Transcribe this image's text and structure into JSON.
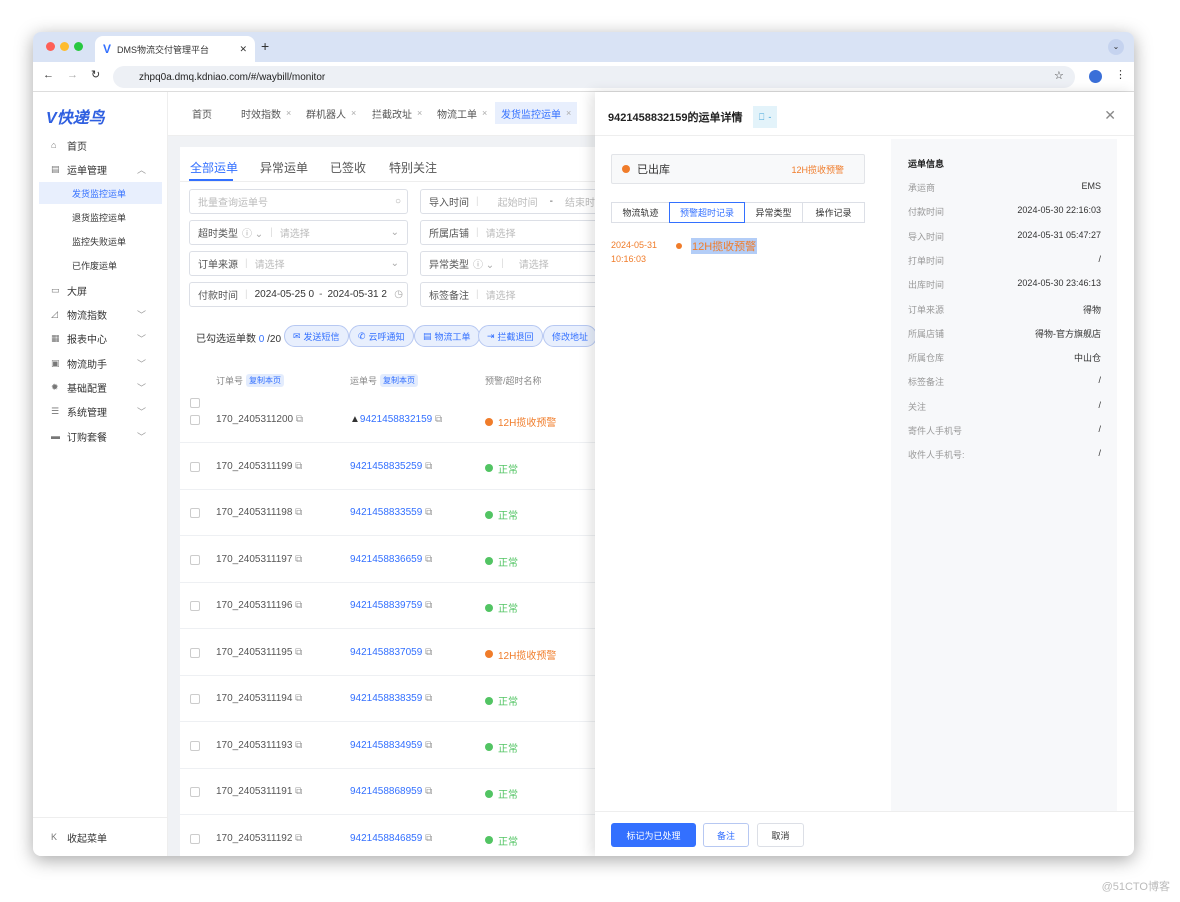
{
  "browser": {
    "tab_title": "DMS物流交付管理平台",
    "url": "zhpq0a.dmq.kdniao.com/#/waybill/monitor"
  },
  "logo": "V快递鸟",
  "sidebar": {
    "items": [
      {
        "label": "首页",
        "icon": "home-icon"
      },
      {
        "label": "运单管理",
        "icon": "document-icon",
        "expanded": true,
        "children": [
          "发货监控运单",
          "退货监控运单",
          "监控失败运单",
          "已作废运单"
        ]
      },
      {
        "label": "大屏",
        "icon": "monitor-icon"
      },
      {
        "label": "物流指数",
        "icon": "chart-icon"
      },
      {
        "label": "报表中心",
        "icon": "grid-icon"
      },
      {
        "label": "物流助手",
        "icon": "wallet-icon"
      },
      {
        "label": "基础配置",
        "icon": "gear-icon"
      },
      {
        "label": "系统管理",
        "icon": "server-icon"
      },
      {
        "label": "订购套餐",
        "icon": "package-icon"
      }
    ],
    "active_child": "发货监控运单",
    "collapse": "收起菜单"
  },
  "page_tabs": [
    "首页",
    "时效指数",
    "群机器人",
    "拦截改址",
    "物流工单",
    "发货监控运单"
  ],
  "main": {
    "tabs": [
      "全部运单",
      "异常运单",
      "已签收",
      "特别关注"
    ],
    "filters": {
      "search_placeholder": "批量查询运单号",
      "import_time": "导入时间",
      "start_ph": "起始时间",
      "end_ph": "结束时",
      "timeout_type": "超时类型",
      "store": "所属店铺",
      "order_source": "订单来源",
      "exception_type": "异常类型",
      "pay_time": "付款时间",
      "pay_start": "2024-05-25 0",
      "pay_end": "2024-05-31 2",
      "tag_note": "标签备注",
      "select_ph": "请选择",
      "dash": "-"
    },
    "selected_label": "已勾选运单数",
    "selected_count": "0",
    "selected_total": "/20",
    "actions": [
      "发送短信",
      "云呼通知",
      "物流工单",
      "拦截退回",
      "修改地址"
    ],
    "columns": {
      "order": "订单号",
      "waybill": "运单号",
      "copy": "复制本页",
      "warning": "预警/超时名称"
    },
    "rows": [
      {
        "order": "170_2405311200",
        "waybill": "9421458832159",
        "status": "12H揽收预警",
        "warn": true,
        "flag": true
      },
      {
        "order": "170_2405311199",
        "waybill": "9421458835259",
        "status": "正常"
      },
      {
        "order": "170_2405311198",
        "waybill": "9421458833559",
        "status": "正常"
      },
      {
        "order": "170_2405311197",
        "waybill": "9421458836659",
        "status": "正常"
      },
      {
        "order": "170_2405311196",
        "waybill": "9421458839759",
        "status": "正常"
      },
      {
        "order": "170_2405311195",
        "waybill": "9421458837059",
        "status": "12H揽收预警",
        "warn": true
      },
      {
        "order": "170_2405311194",
        "waybill": "9421458838359",
        "status": "正常"
      },
      {
        "order": "170_2405311193",
        "waybill": "9421458834959",
        "status": "正常"
      },
      {
        "order": "170_2405311191",
        "waybill": "9421458868959",
        "status": "正常"
      },
      {
        "order": "170_2405311192",
        "waybill": "9421458846859",
        "status": "正常"
      }
    ]
  },
  "drawer": {
    "title": "9421458832159的运单详情",
    "tag": "-",
    "status": "已出库",
    "status_warn": "12H揽收预警",
    "tabs": [
      "物流轨迹",
      "预警超时记录",
      "异常类型",
      "操作记录"
    ],
    "active_tab": "预警超时记录",
    "record": {
      "date": "2024-05-31",
      "time": "10:16:03",
      "name": "12H揽收预警"
    },
    "info_title": "运单信息",
    "info": [
      [
        "承运商",
        "EMS"
      ],
      [
        "付款时间",
        "2024-05-30 22:16:03"
      ],
      [
        "导入时间",
        "2024-05-31 05:47:27"
      ],
      [
        "打单时间",
        "/"
      ],
      [
        "出库时间",
        "2024-05-30 23:46:13"
      ],
      [
        "订单来源",
        "得物"
      ],
      [
        "所属店铺",
        "得物-官方旗舰店"
      ],
      [
        "所属仓库",
        "中山仓"
      ],
      [
        "标签备注",
        "/"
      ],
      [
        "关注",
        "/"
      ],
      [
        "寄件人手机号",
        "/"
      ],
      [
        "收件人手机号:",
        "/"
      ]
    ],
    "buttons": {
      "mark": "标记为已处理",
      "note": "备注",
      "cancel": "取消"
    }
  },
  "colors": {
    "accent": "#3370ff",
    "warn": "#f07c2a",
    "ok": "#52c463"
  },
  "watermark": "@51CTO博客"
}
